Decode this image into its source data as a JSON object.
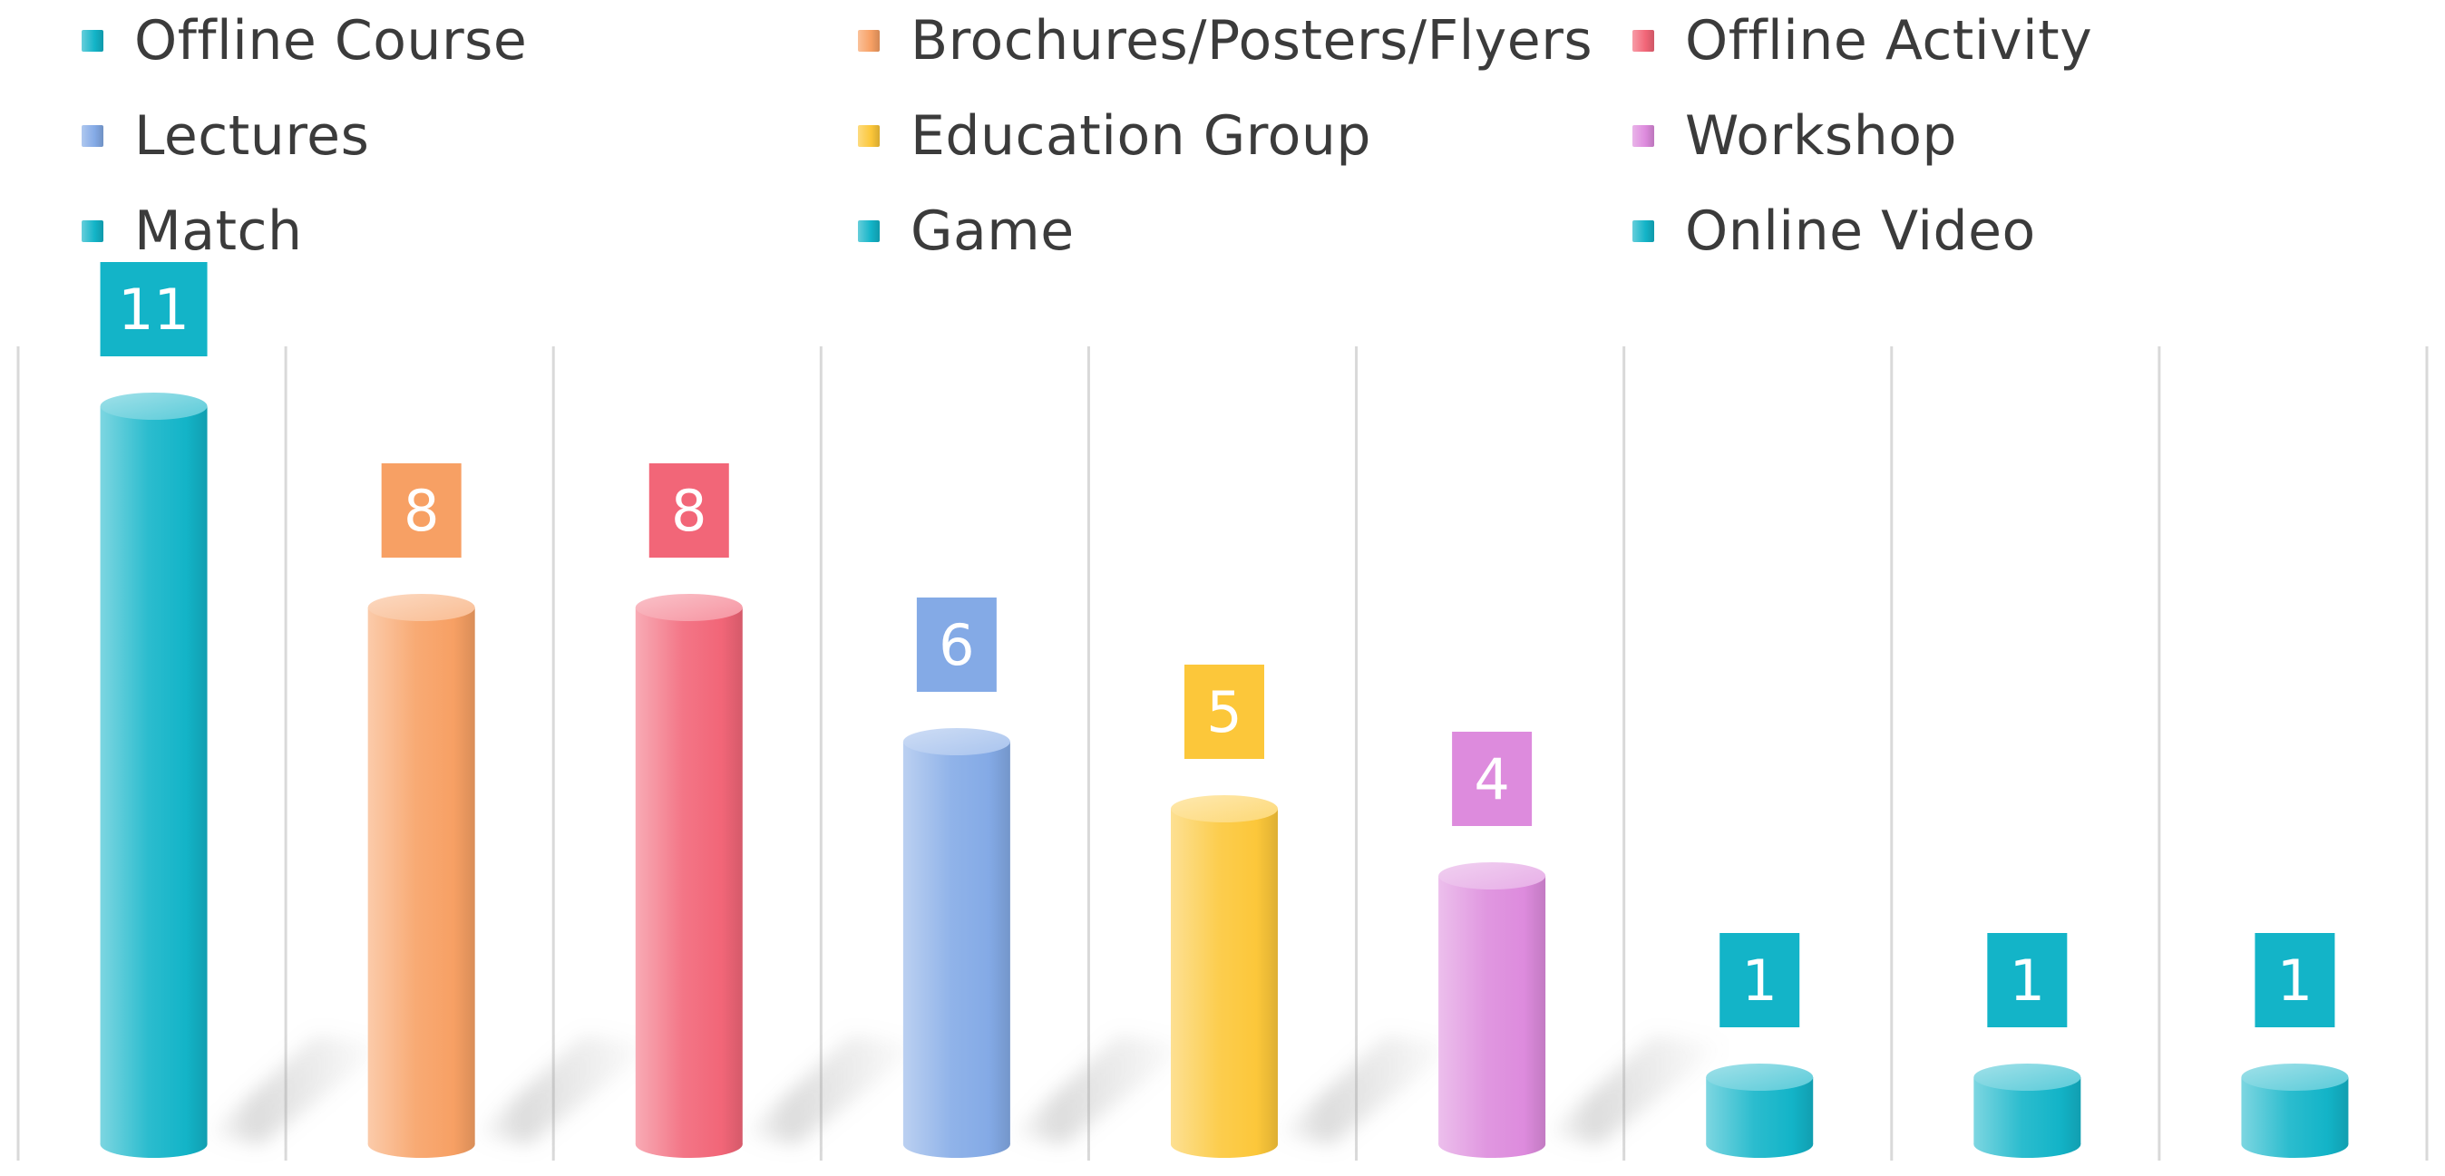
{
  "chart_data": {
    "type": "bar",
    "style": "3d-cylinder",
    "categories": [
      "Offline Course",
      "Brochures/Posters/Flyers",
      "Offline Activity",
      "Lectures",
      "Education Group",
      "Workshop",
      "Match",
      "Game",
      "Online Video"
    ],
    "values": [
      11,
      8,
      8,
      6,
      5,
      4,
      1,
      1,
      1
    ],
    "colors": [
      "#13b4c8",
      "#f7a064",
      "#f26678",
      "#84aae6",
      "#fcc73a",
      "#dd8bdd",
      "#13b4c8",
      "#13b4c8",
      "#13b4c8"
    ],
    "legend_position": "top",
    "gridlines": "vertical",
    "ylim": [
      0,
      12
    ]
  }
}
